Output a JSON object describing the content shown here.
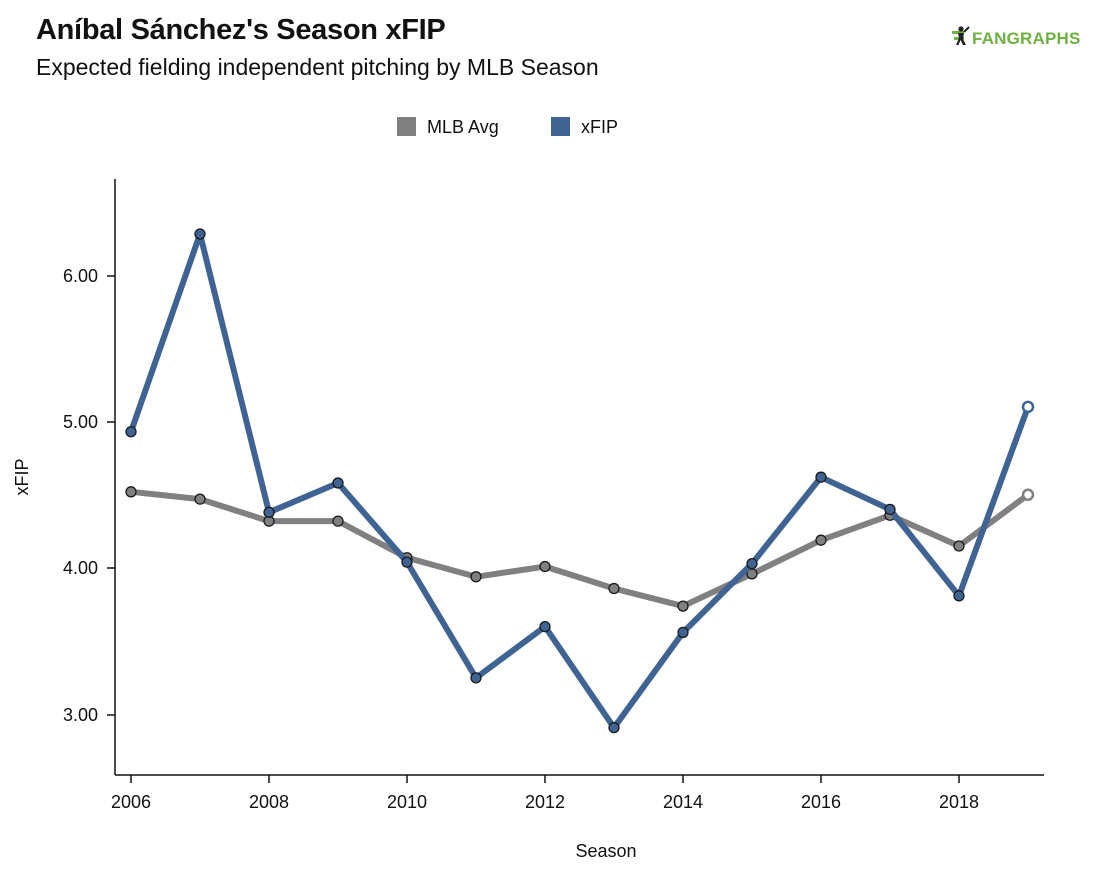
{
  "header": {
    "title": "Aníbal Sánchez's Season xFIP",
    "subtitle": "Expected fielding independent pitching by MLB Season",
    "brand": "FANGRAPHS"
  },
  "chart_data": {
    "type": "line",
    "title": "Aníbal Sánchez's Season xFIP",
    "subtitle": "Expected fielding independent pitching by MLB Season",
    "xlabel": "Season",
    "ylabel": "xFIP",
    "x": [
      2006,
      2007,
      2008,
      2009,
      2010,
      2011,
      2012,
      2013,
      2014,
      2015,
      2016,
      2017,
      2018,
      2019
    ],
    "xlim": [
      2006,
      2019
    ],
    "ylim": [
      2.6,
      6.65
    ],
    "x_ticks": [
      "2006",
      "2008",
      "2010",
      "2012",
      "2014",
      "2016",
      "2018"
    ],
    "y_ticks": [
      "3.00",
      "4.00",
      "5.00",
      "6.00"
    ],
    "legend_position": "top-center",
    "grid": false,
    "series": [
      {
        "name": "MLB Avg",
        "color": "#808080",
        "values": [
          4.52,
          4.47,
          4.32,
          4.32,
          4.07,
          3.94,
          4.01,
          3.86,
          3.74,
          3.96,
          4.19,
          4.36,
          4.15,
          4.5
        ]
      },
      {
        "name": "xFIP",
        "color": "#3f6494",
        "values": [
          4.93,
          6.28,
          4.38,
          4.58,
          4.04,
          3.25,
          3.6,
          2.91,
          3.56,
          4.03,
          4.62,
          4.4,
          3.81,
          5.1
        ]
      }
    ],
    "hollow_last_point": true
  }
}
